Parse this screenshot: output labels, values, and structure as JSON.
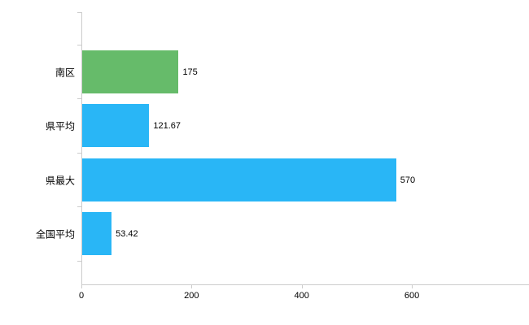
{
  "chart_data": {
    "type": "bar",
    "orientation": "horizontal",
    "title": "",
    "xlabel": "",
    "ylabel": "",
    "categories": [
      "南区",
      "県平均",
      "県最大",
      "全国平均"
    ],
    "values": [
      175,
      121.67,
      570,
      53.42
    ],
    "value_labels": [
      "175",
      "121.67",
      "570",
      "53.42"
    ],
    "bar_colors": [
      "#66bb6a",
      "#29b6f6",
      "#29b6f6",
      "#29b6f6"
    ],
    "xlim": [
      0,
      820
    ],
    "x_ticks": [
      0,
      200,
      400,
      600
    ],
    "x_tick_labels": [
      "0",
      "200",
      "400",
      "600"
    ],
    "grid": false,
    "legend": null,
    "colors": {
      "axis": "#cccccc",
      "text": "#000000",
      "highlight_bar": "#66bb6a",
      "default_bar": "#29b6f6",
      "background": "#ffffff"
    }
  }
}
